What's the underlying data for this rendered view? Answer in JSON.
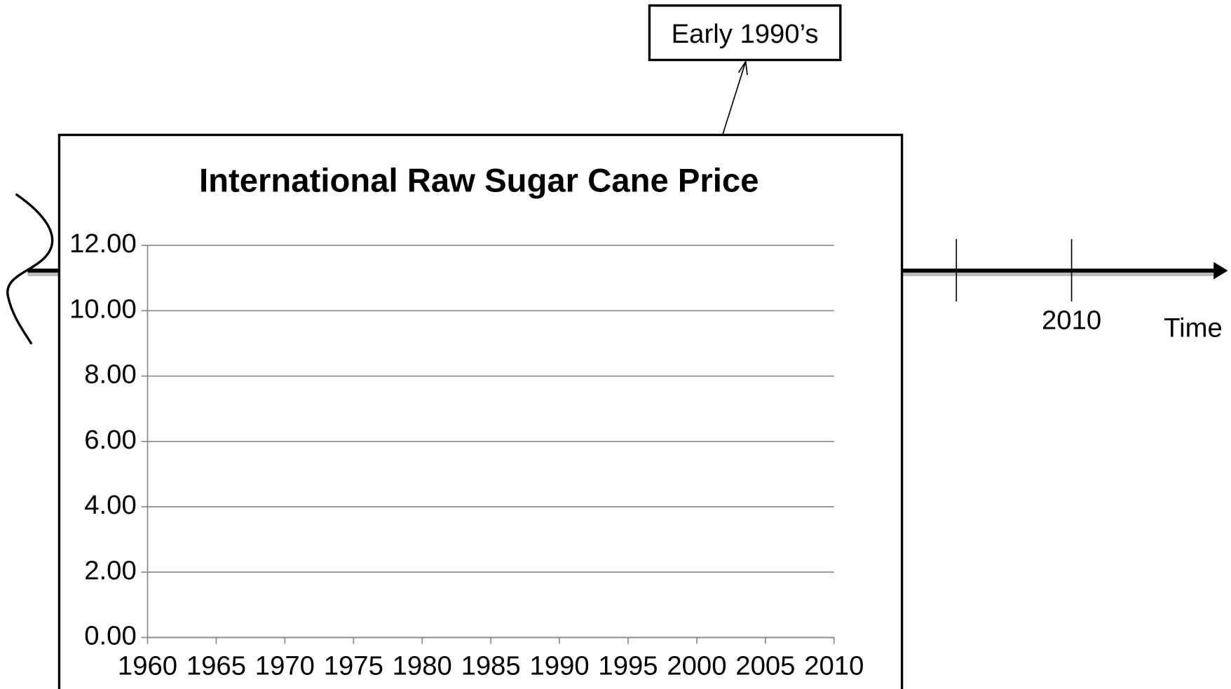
{
  "chart_data": {
    "type": "line",
    "title": "International Raw Sugar Cane Price",
    "series": [],
    "xlim": [
      1960,
      2010
    ],
    "xticks": [
      1960,
      1965,
      1970,
      1975,
      1980,
      1985,
      1990,
      1995,
      2000,
      2005,
      2010
    ],
    "ylim": [
      0,
      12
    ],
    "yticks": [
      {
        "value": 0,
        "label": "0.00"
      },
      {
        "value": 2,
        "label": "2.00"
      },
      {
        "value": 4,
        "label": "4.00"
      },
      {
        "value": 6,
        "label": "6.00"
      },
      {
        "value": 8,
        "label": "8.00"
      },
      {
        "value": 10,
        "label": "10.00"
      },
      {
        "value": 12,
        "label": "12.00"
      }
    ],
    "grid": true
  },
  "timeline": {
    "tick_label": "2010",
    "axis_label": "Time"
  },
  "callout": "Early 1990’s"
}
